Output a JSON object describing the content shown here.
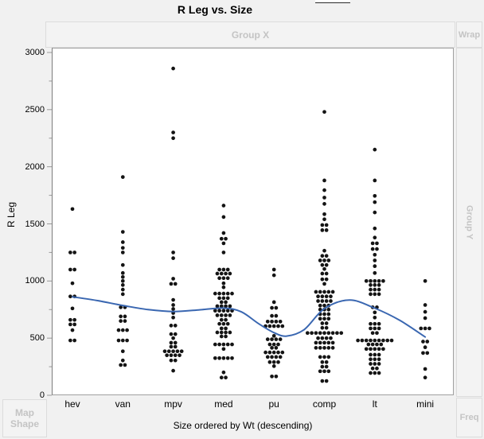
{
  "window": {
    "title": "R Leg vs. Size"
  },
  "drop_zones": {
    "group_x": "Group X",
    "wrap": "Wrap",
    "group_y": "Group Y",
    "freq": "Freq",
    "map_shape_lines": [
      "Map",
      "Shape"
    ]
  },
  "colors": {
    "smoother_line": "#3a67b1",
    "dot": "#141414",
    "tick": "#9a9a9a",
    "dropzone_text": "#c4c4c4",
    "plot_background": "#ffffff",
    "window_background": "#f1f1f1"
  },
  "chart_data": {
    "type": "scatter",
    "title": "R Leg vs. Size",
    "xlabel": "Size ordered by Wt (descending)",
    "ylabel": "R Leg",
    "ylim": [
      0,
      3000
    ],
    "y_major_ticks": [
      0,
      500,
      1000,
      1500,
      2000,
      2500,
      3000
    ],
    "y_minor_ticks": [
      250,
      750,
      1250,
      1750,
      2250,
      2750
    ],
    "grid": false,
    "legend": "none",
    "categories": [
      "hev",
      "van",
      "mpv",
      "med",
      "pu",
      "comp",
      "lt",
      "mini"
    ],
    "point_rows_note": "each entry is [R-Leg value, count of side-by-side dots]",
    "points": {
      "hev": [
        [
          1630,
          1
        ],
        [
          1250,
          2
        ],
        [
          1100,
          2
        ],
        [
          980,
          1
        ],
        [
          865,
          2
        ],
        [
          760,
          1
        ],
        [
          660,
          2
        ],
        [
          620,
          2
        ],
        [
          570,
          1
        ],
        [
          480,
          2
        ]
      ],
      "van": [
        [
          1910,
          1
        ],
        [
          1430,
          1
        ],
        [
          1340,
          1
        ],
        [
          1290,
          1
        ],
        [
          1250,
          1
        ],
        [
          1140,
          1
        ],
        [
          1070,
          1
        ],
        [
          1035,
          1
        ],
        [
          1000,
          1
        ],
        [
          965,
          1
        ],
        [
          925,
          1
        ],
        [
          885,
          1
        ],
        [
          770,
          2
        ],
        [
          690,
          2
        ],
        [
          650,
          2
        ],
        [
          570,
          3
        ],
        [
          480,
          3
        ],
        [
          385,
          1
        ],
        [
          305,
          1
        ],
        [
          265,
          2
        ]
      ],
      "mpv": [
        [
          2860,
          1
        ],
        [
          2300,
          1
        ],
        [
          2250,
          1
        ],
        [
          1250,
          1
        ],
        [
          1200,
          1
        ],
        [
          1020,
          1
        ],
        [
          975,
          2
        ],
        [
          835,
          1
        ],
        [
          790,
          1
        ],
        [
          755,
          1
        ],
        [
          720,
          1
        ],
        [
          680,
          1
        ],
        [
          610,
          2
        ],
        [
          535,
          2
        ],
        [
          500,
          1
        ],
        [
          460,
          2
        ],
        [
          425,
          2
        ],
        [
          385,
          5
        ],
        [
          350,
          4
        ],
        [
          305,
          2
        ],
        [
          215,
          1
        ]
      ],
      "med": [
        [
          1660,
          1
        ],
        [
          1560,
          1
        ],
        [
          1420,
          1
        ],
        [
          1370,
          2
        ],
        [
          1330,
          1
        ],
        [
          1250,
          1
        ],
        [
          1100,
          3
        ],
        [
          1065,
          4
        ],
        [
          1025,
          3
        ],
        [
          980,
          1
        ],
        [
          945,
          1
        ],
        [
          890,
          5
        ],
        [
          850,
          3
        ],
        [
          815,
          2
        ],
        [
          780,
          4
        ],
        [
          740,
          5
        ],
        [
          700,
          4
        ],
        [
          660,
          2
        ],
        [
          625,
          3
        ],
        [
          585,
          2
        ],
        [
          550,
          4
        ],
        [
          515,
          2
        ],
        [
          445,
          5
        ],
        [
          405,
          1
        ],
        [
          325,
          5
        ],
        [
          200,
          1
        ],
        [
          155,
          2
        ]
      ],
      "pu": [
        [
          1100,
          1
        ],
        [
          1050,
          1
        ],
        [
          815,
          1
        ],
        [
          765,
          2
        ],
        [
          695,
          2
        ],
        [
          645,
          4
        ],
        [
          605,
          5
        ],
        [
          520,
          1
        ],
        [
          490,
          4
        ],
        [
          445,
          3
        ],
        [
          415,
          2
        ],
        [
          375,
          5
        ],
        [
          335,
          4
        ],
        [
          290,
          3
        ],
        [
          255,
          1
        ],
        [
          165,
          2
        ]
      ],
      "comp": [
        [
          2480,
          1
        ],
        [
          1880,
          1
        ],
        [
          1795,
          1
        ],
        [
          1730,
          1
        ],
        [
          1675,
          1
        ],
        [
          1585,
          1
        ],
        [
          1540,
          1
        ],
        [
          1490,
          2
        ],
        [
          1445,
          2
        ],
        [
          1265,
          1
        ],
        [
          1220,
          2
        ],
        [
          1180,
          3
        ],
        [
          1140,
          2
        ],
        [
          1105,
          1
        ],
        [
          1065,
          2
        ],
        [
          1015,
          2
        ],
        [
          975,
          1
        ],
        [
          905,
          5
        ],
        [
          865,
          4
        ],
        [
          825,
          4
        ],
        [
          785,
          3
        ],
        [
          750,
          3
        ],
        [
          710,
          3
        ],
        [
          670,
          3
        ],
        [
          630,
          2
        ],
        [
          590,
          2
        ],
        [
          545,
          9
        ],
        [
          500,
          4
        ],
        [
          460,
          5
        ],
        [
          415,
          5
        ],
        [
          335,
          3
        ],
        [
          290,
          2
        ],
        [
          250,
          2
        ],
        [
          210,
          3
        ],
        [
          125,
          2
        ]
      ],
      "lt": [
        [
          2150,
          1
        ],
        [
          1880,
          1
        ],
        [
          1745,
          1
        ],
        [
          1690,
          1
        ],
        [
          1600,
          1
        ],
        [
          1460,
          1
        ],
        [
          1380,
          1
        ],
        [
          1330,
          2
        ],
        [
          1280,
          2
        ],
        [
          1230,
          1
        ],
        [
          1180,
          1
        ],
        [
          1130,
          1
        ],
        [
          1070,
          1
        ],
        [
          1000,
          5
        ],
        [
          965,
          3
        ],
        [
          925,
          3
        ],
        [
          885,
          3
        ],
        [
          770,
          2
        ],
        [
          725,
          1
        ],
        [
          680,
          1
        ],
        [
          625,
          3
        ],
        [
          585,
          3
        ],
        [
          545,
          2
        ],
        [
          480,
          9
        ],
        [
          445,
          4
        ],
        [
          405,
          5
        ],
        [
          355,
          3
        ],
        [
          315,
          3
        ],
        [
          275,
          3
        ],
        [
          235,
          2
        ],
        [
          195,
          3
        ]
      ],
      "mini": [
        [
          1000,
          1
        ],
        [
          790,
          1
        ],
        [
          730,
          1
        ],
        [
          675,
          1
        ],
        [
          585,
          3
        ],
        [
          470,
          2
        ],
        [
          420,
          1
        ],
        [
          370,
          2
        ],
        [
          230,
          1
        ],
        [
          155,
          1
        ]
      ]
    },
    "smoother": {
      "name": "smoother-line",
      "points_cat_value": [
        [
          0,
          862
        ],
        [
          0.5,
          828
        ],
        [
          1,
          786
        ],
        [
          1.5,
          750
        ],
        [
          2,
          733
        ],
        [
          2.5,
          747
        ],
        [
          3,
          763
        ],
        [
          3.35,
          730
        ],
        [
          3.7,
          625
        ],
        [
          4,
          548
        ],
        [
          4.25,
          518
        ],
        [
          4.6,
          575
        ],
        [
          5,
          758
        ],
        [
          5.5,
          833
        ],
        [
          6,
          762
        ],
        [
          6.5,
          655
        ],
        [
          7,
          510
        ]
      ]
    }
  }
}
